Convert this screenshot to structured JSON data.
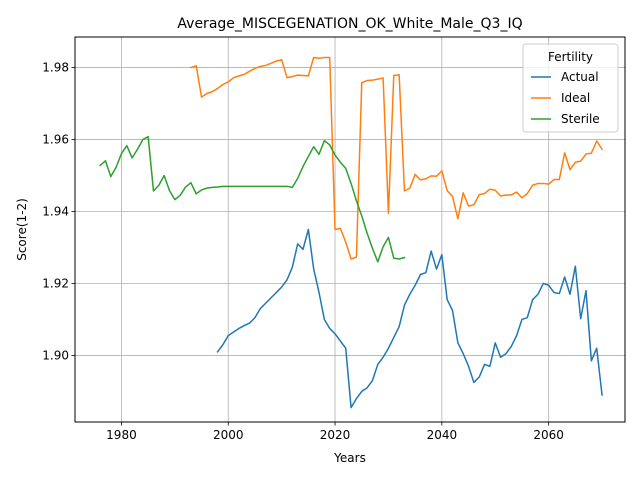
{
  "chart_data": {
    "type": "line",
    "title": "Average_MISCEGENATION_OK_White_Male_Q3_IQ",
    "xlabel": "Years",
    "ylabel": "Score(1-2)",
    "xlim": [
      1971.3,
      1974.3
    ],
    "ylim": [
      1.8815,
      1.9885
    ],
    "xticks": [
      1980,
      2000,
      2020,
      2040,
      2060
    ],
    "yticks": [
      1.9,
      1.92,
      1.94,
      1.96,
      1.98
    ],
    "xtick_labels": [
      "1980",
      "2000",
      "2020",
      "2040",
      "2060"
    ],
    "ytick_labels": [
      "1.90",
      "1.92",
      "1.94",
      "1.96",
      "1.98"
    ],
    "grid": true,
    "legend": {
      "title": "Fertility",
      "position": "top-right"
    },
    "series": [
      {
        "name": "Actual",
        "color": "#1f77b4",
        "x": [
          1998,
          1999,
          2000,
          2001,
          2002,
          2003,
          2004,
          2005,
          2006,
          2007,
          2008,
          2009,
          2010,
          2011,
          2012,
          2013,
          2014,
          2015,
          2016,
          2017,
          2018,
          2019,
          2020,
          2021,
          2022,
          2023,
          2024,
          2025,
          2026,
          2027,
          2028,
          2029,
          2030,
          2031,
          2032,
          2033,
          2034,
          2035,
          2036,
          2037,
          2038,
          2039,
          2040,
          2041,
          2042,
          2043,
          2044,
          2045,
          2046,
          2047,
          2048,
          2049,
          2050,
          2051,
          2052,
          2053,
          2054,
          2055,
          2056,
          2057,
          2058,
          2059,
          2060,
          2061,
          2062,
          2063,
          2064,
          2065,
          2066,
          2067,
          2068,
          2069,
          2070
        ],
        "y": [
          1.901,
          1.903,
          1.9055,
          1.9065,
          1.9075,
          1.9083,
          1.909,
          1.9105,
          1.913,
          1.9145,
          1.916,
          1.9175,
          1.919,
          1.921,
          1.9245,
          1.931,
          1.9295,
          1.935,
          1.924,
          1.9175,
          1.91,
          1.9075,
          1.906,
          1.904,
          1.902,
          1.8855,
          1.888,
          1.89,
          1.891,
          1.893,
          1.8975,
          1.8995,
          1.902,
          1.905,
          1.908,
          1.914,
          1.917,
          1.9195,
          1.9225,
          1.923,
          1.929,
          1.924,
          1.928,
          1.9155,
          1.9125,
          1.9035,
          1.9005,
          1.897,
          1.8925,
          1.894,
          1.8975,
          1.897,
          1.9035,
          1.8995,
          1.9005,
          1.9025,
          1.9055,
          1.91,
          1.9105,
          1.9155,
          1.917,
          1.92,
          1.9195,
          1.9175,
          1.9172,
          1.9218,
          1.917,
          1.9248,
          1.9102,
          1.918,
          1.8985,
          1.902,
          1.889
        ]
      },
      {
        "name": "Ideal",
        "color": "#ff7f0e",
        "x": [
          1993,
          1994,
          1995,
          1996,
          1997,
          1998,
          1999,
          2000,
          2001,
          2002,
          2003,
          2004,
          2005,
          2006,
          2007,
          2008,
          2009,
          2010,
          2011,
          2012,
          2013,
          2014,
          2015,
          2016,
          2017,
          2018,
          2019,
          2020,
          2021,
          2022,
          2023,
          2024,
          2025,
          2026,
          2027,
          2028,
          2029,
          2030,
          2031,
          2032,
          2033,
          2034,
          2035,
          2036,
          2037,
          2038,
          2039,
          2040,
          2041,
          2042,
          2043,
          2044,
          2045,
          2046,
          2047,
          2048,
          2049,
          2050,
          2051,
          2052,
          2053,
          2054,
          2055,
          2056,
          2057,
          2058,
          2059,
          2060,
          2061,
          2062,
          2063,
          2064,
          2065,
          2066,
          2067,
          2068,
          2069,
          2070
        ],
        "y": [
          1.98,
          1.9805,
          1.9718,
          1.9728,
          1.9733,
          1.9742,
          1.9753,
          1.976,
          1.9772,
          1.9777,
          1.9781,
          1.979,
          1.9798,
          1.9803,
          1.9806,
          1.9812,
          1.9818,
          1.9822,
          1.9772,
          1.9775,
          1.9779,
          1.9778,
          1.9777,
          1.9828,
          1.9826,
          1.9828,
          1.9828,
          1.935,
          1.9353,
          1.9315,
          1.9268,
          1.9273,
          1.9758,
          1.9764,
          1.9765,
          1.9768,
          1.9771,
          1.9395,
          1.9778,
          1.978,
          1.9457,
          1.9465,
          1.9503,
          1.9488,
          1.9491,
          1.9499,
          1.9498,
          1.9513,
          1.9458,
          1.9442,
          1.938,
          1.9452,
          1.9415,
          1.9419,
          1.9447,
          1.945,
          1.9462,
          1.9459,
          1.9443,
          1.9446,
          1.9446,
          1.9454,
          1.9438,
          1.945,
          1.9473,
          1.9478,
          1.9478,
          1.9476,
          1.9489,
          1.9489,
          1.9563,
          1.9516,
          1.9537,
          1.954,
          1.956,
          1.9562,
          1.9596,
          1.9573
        ]
      },
      {
        "name": "Sterile",
        "color": "#2ca02c",
        "x": [
          1976,
          1977,
          1978,
          1979,
          1980,
          1981,
          1982,
          1983,
          1984,
          1985,
          1986,
          1987,
          1988,
          1989,
          1990,
          1991,
          1992,
          1993,
          1994,
          1995,
          1996,
          1997,
          1998,
          1999,
          2000,
          2001,
          2002,
          2003,
          2004,
          2005,
          2006,
          2007,
          2008,
          2009,
          2010,
          2011,
          2012,
          2013,
          2014,
          2015,
          2016,
          2017,
          2018,
          2019,
          2020,
          2021,
          2022,
          2023,
          2024,
          2025,
          2026,
          2027,
          2028,
          2029,
          2030,
          2031,
          2032,
          2033
        ],
        "y": [
          1.9528,
          1.9541,
          1.9497,
          1.9523,
          1.9561,
          1.9583,
          1.9549,
          1.9573,
          1.96,
          1.9608,
          1.9457,
          1.9473,
          1.95,
          1.9458,
          1.9433,
          1.9445,
          1.9468,
          1.948,
          1.9449,
          1.946,
          1.9465,
          1.9467,
          1.9468,
          1.947,
          1.947,
          1.947,
          1.947,
          1.947,
          1.947,
          1.947,
          1.947,
          1.947,
          1.947,
          1.947,
          1.947,
          1.947,
          1.9467,
          1.9492,
          1.9525,
          1.9553,
          1.958,
          1.9559,
          1.9597,
          1.9585,
          1.9557,
          1.9537,
          1.952,
          1.9478,
          1.943,
          1.9388,
          1.934,
          1.9298,
          1.926,
          1.9302,
          1.9328,
          1.927,
          1.9268,
          1.9272
        ]
      }
    ]
  }
}
